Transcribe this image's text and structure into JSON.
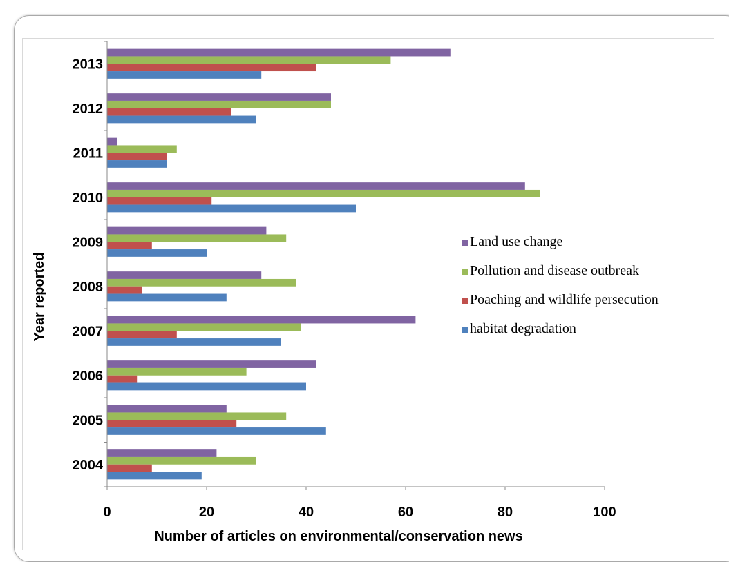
{
  "chart_data": {
    "type": "bar",
    "orientation": "horizontal",
    "title": "",
    "xlabel": "Number of articles on environmental/conservation news",
    "ylabel": "Year reported",
    "categories": [
      "2004",
      "2005",
      "2006",
      "2007",
      "2008",
      "2009",
      "2010",
      "2011",
      "2012",
      "2013"
    ],
    "xlim": [
      0,
      100
    ],
    "xticks": [
      0,
      20,
      40,
      60,
      80,
      100
    ],
    "grid": false,
    "legend_position": "right",
    "series": [
      {
        "name": "Land use change",
        "color": "#8064a2",
        "values": [
          22,
          24,
          42,
          62,
          31,
          32,
          84,
          2,
          45,
          69
        ]
      },
      {
        "name": "Pollution and disease outbreak",
        "color": "#9bbb59",
        "values": [
          30,
          36,
          28,
          39,
          38,
          36,
          87,
          14,
          45,
          57
        ]
      },
      {
        "name": "Poaching and wildlife persecution",
        "color": "#c0504d",
        "values": [
          9,
          26,
          6,
          14,
          7,
          9,
          21,
          12,
          25,
          42
        ]
      },
      {
        "name": "habitat degradation",
        "color": "#4f81bd",
        "values": [
          19,
          44,
          40,
          35,
          24,
          20,
          50,
          12,
          30,
          31
        ]
      }
    ]
  }
}
